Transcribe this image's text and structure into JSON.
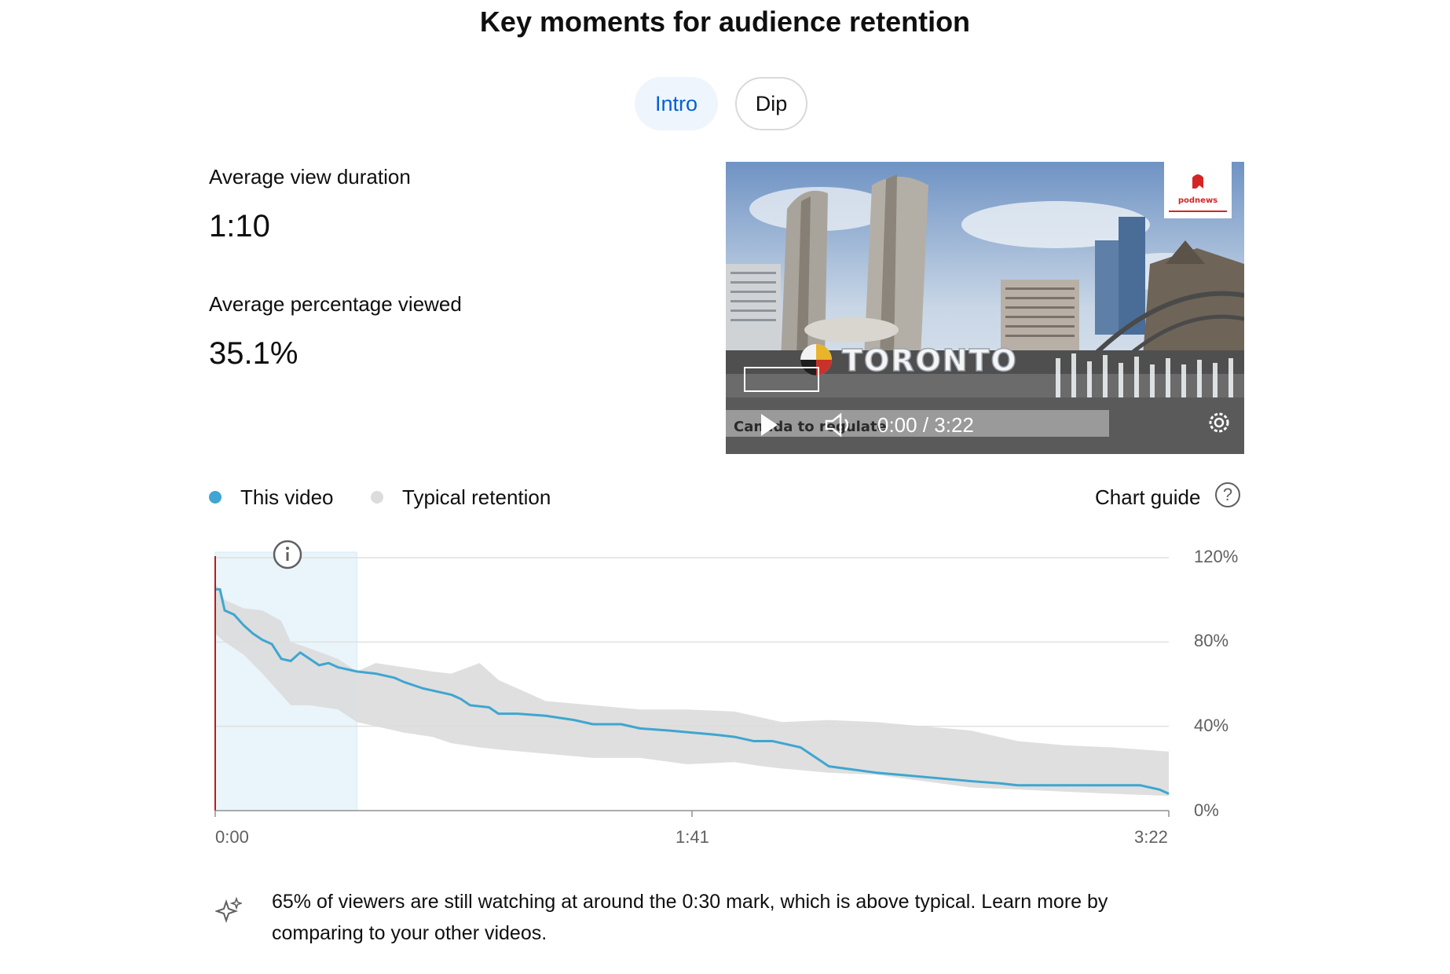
{
  "page": {
    "title": "Key moments for audience retention"
  },
  "tabs": [
    {
      "label": "Intro",
      "active": true
    },
    {
      "label": "Dip",
      "active": false
    }
  ],
  "stats": {
    "avg_view_duration_label": "Average view duration",
    "avg_view_duration_value": "1:10",
    "avg_percentage_label": "Average percentage viewed",
    "avg_percentage_value": "35.1%"
  },
  "video": {
    "sign_text": "TORONTO",
    "watermark": "podnews",
    "caption_text": "Canada to regulate",
    "time_display": "0:00 / 3:22",
    "icons": [
      "play-icon",
      "volume-icon",
      "settings-gear-icon"
    ]
  },
  "legend": {
    "this_video": "This video",
    "typical": "Typical retention",
    "chart_guide": "Chart guide",
    "help_icon": "?"
  },
  "colors": {
    "this_video": "#3ea6d0",
    "typical_band": "#dcdcdc",
    "highlight": "#eaf5fb",
    "playhead": "#b31d1d",
    "active_tab_bg": "#eef5fd",
    "active_tab_text": "#065fd4"
  },
  "chart_data": {
    "type": "area",
    "x_unit": "seconds",
    "x_range": [
      0,
      202
    ],
    "ylim": [
      0,
      120
    ],
    "yticks": [
      "120%",
      "80%",
      "40%",
      "0%"
    ],
    "xticks": [
      "0:00",
      "1:41",
      "3:22"
    ],
    "grid": true,
    "legend_position": "top-left",
    "highlight_range": [
      0,
      30
    ],
    "series": [
      {
        "name": "This video",
        "x": [
          0,
          1,
          2,
          4,
          6,
          8,
          10,
          12,
          14,
          16,
          18,
          20,
          22,
          24,
          26,
          28,
          30,
          34,
          38,
          40,
          44,
          46,
          50,
          52,
          54,
          58,
          60,
          64,
          70,
          76,
          80,
          86,
          90,
          96,
          106,
          110,
          114,
          118,
          124,
          130,
          140,
          150,
          160,
          166,
          170,
          180,
          190,
          196,
          200,
          202
        ],
        "y": [
          105,
          105,
          95,
          93,
          88,
          84,
          81,
          79,
          72,
          71,
          75,
          72,
          69,
          70,
          68,
          67,
          66,
          65,
          63,
          61,
          58,
          57,
          55,
          53,
          50,
          49,
          46,
          46,
          45,
          43,
          41,
          41,
          39,
          38,
          36,
          35,
          33,
          33,
          30,
          21,
          18,
          16,
          14,
          13,
          12,
          12,
          12,
          12,
          10,
          8
        ]
      },
      {
        "name": "Typical retention",
        "x": [
          0,
          2,
          6,
          10,
          14,
          16,
          20,
          26,
          30,
          34,
          40,
          46,
          50,
          56,
          60,
          70,
          80,
          90,
          100,
          110,
          116,
          120,
          130,
          140,
          150,
          160,
          170,
          180,
          190,
          202
        ],
        "upper": [
          108,
          100,
          96,
          95,
          90,
          80,
          77,
          72,
          66,
          70,
          68,
          66,
          65,
          70,
          62,
          52,
          50,
          48,
          48,
          47,
          44,
          42,
          43,
          42,
          40,
          38,
          33,
          31,
          30,
          28
        ],
        "lower": [
          84,
          80,
          74,
          65,
          55,
          50,
          50,
          48,
          42,
          40,
          37,
          35,
          32,
          30,
          29,
          27,
          25,
          25,
          22,
          23,
          21,
          20,
          18,
          17,
          14,
          11,
          10,
          9,
          8,
          7
        ]
      }
    ]
  },
  "insight": {
    "text": "65% of viewers are still watching at around the 0:30 mark, which is above typical. Learn more by comparing to your other videos."
  }
}
